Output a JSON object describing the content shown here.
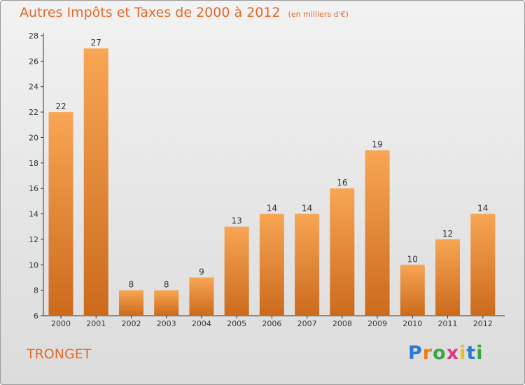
{
  "title": "Autres Impôts et Taxes de 2000 à 2012",
  "subtitle": "(en milliers d'€)",
  "commune": "TRONGET",
  "logo": {
    "letters": [
      "P",
      "r",
      "o",
      "x",
      "i",
      "t",
      "i"
    ],
    "colors": [
      "#2a7bd1",
      "#e8801a",
      "#3aa640",
      "#d83a8a",
      "#e8c01a",
      "#2a7bd1",
      "#3aa640"
    ]
  },
  "colors": {
    "bar_top": "#f7a654",
    "bar_bottom": "#cc6a1c",
    "title": "#e06a2a"
  },
  "chart_data": {
    "type": "bar",
    "categories": [
      "2000",
      "2001",
      "2002",
      "2003",
      "2004",
      "2005",
      "2006",
      "2007",
      "2008",
      "2009",
      "2010",
      "2011",
      "2012"
    ],
    "values": [
      22,
      27,
      8,
      8,
      9,
      13,
      14,
      14,
      16,
      19,
      10,
      12,
      14
    ],
    "ylim": [
      6,
      28
    ],
    "yticks": [
      6,
      8,
      10,
      12,
      14,
      16,
      18,
      20,
      22,
      24,
      26,
      28
    ],
    "grid": false,
    "xlabel": "",
    "ylabel": ""
  }
}
